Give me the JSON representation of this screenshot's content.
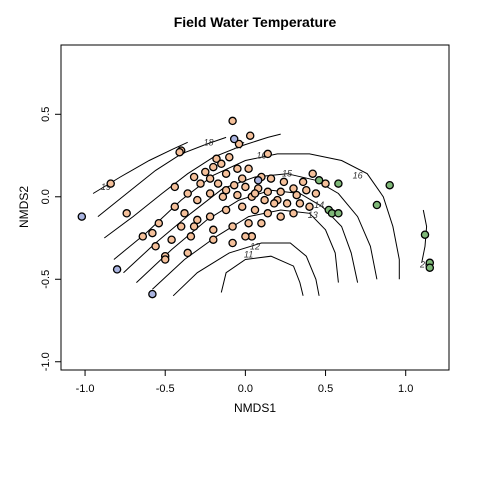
{
  "chart_data": {
    "type": "scatter",
    "title": "Field Water Temperature",
    "xlabel": "NMDS1",
    "ylabel": "NMDS2",
    "xlim": [
      -1.15,
      1.27
    ],
    "ylim": [
      -1.05,
      0.92
    ],
    "xticks": [
      -1.0,
      -0.5,
      0.0,
      0.5,
      1.0
    ],
    "yticks": [
      -1.0,
      -0.5,
      0.0,
      0.5
    ],
    "xtick_labels": [
      "-1.0",
      "-0.5",
      "0.0",
      "0.5",
      "1.0"
    ],
    "ytick_labels": [
      "-1.0",
      "-0.5",
      "0.0",
      "0.5"
    ],
    "grid": false,
    "colors": {
      "orange": "#f5c09a",
      "blue": "#aab4e0",
      "green": "#7fb878"
    },
    "contours": [
      {
        "level": "19",
        "path": [
          [
            -0.95,
            0.02
          ],
          [
            -0.78,
            0.12
          ],
          [
            -0.6,
            0.22
          ],
          [
            -0.45,
            0.29
          ],
          [
            -0.36,
            0.33
          ]
        ]
      },
      {
        "level": "18",
        "path": [
          [
            -0.92,
            -0.12
          ],
          [
            -0.74,
            0.02
          ],
          [
            -0.56,
            0.16
          ],
          [
            -0.4,
            0.26
          ],
          [
            -0.24,
            0.32
          ],
          [
            -0.12,
            0.36
          ]
        ]
      },
      {
        "level": "17",
        "path": [
          [
            -0.88,
            -0.25
          ],
          [
            -0.7,
            -0.12
          ],
          [
            -0.52,
            0.02
          ],
          [
            -0.36,
            0.14
          ],
          [
            -0.2,
            0.24
          ],
          [
            -0.02,
            0.31
          ],
          [
            0.14,
            0.36
          ],
          [
            0.22,
            0.38
          ]
        ]
      },
      {
        "level": "16",
        "path": [
          [
            -0.82,
            -0.38
          ],
          [
            -0.62,
            -0.22
          ],
          [
            -0.4,
            -0.02
          ],
          [
            -0.2,
            0.13
          ],
          [
            0.0,
            0.22
          ],
          [
            0.2,
            0.26
          ],
          [
            0.4,
            0.26
          ],
          [
            0.6,
            0.22
          ],
          [
            0.76,
            0.14
          ],
          [
            0.86,
            0.0
          ],
          [
            0.92,
            -0.18
          ],
          [
            0.96,
            -0.38
          ],
          [
            0.96,
            -0.5
          ]
        ]
      },
      {
        "level": "15",
        "path": [
          [
            -0.76,
            -0.46
          ],
          [
            -0.56,
            -0.28
          ],
          [
            -0.34,
            -0.1
          ],
          [
            -0.14,
            0.05
          ],
          [
            0.06,
            0.12
          ],
          [
            0.26,
            0.14
          ],
          [
            0.44,
            0.1
          ],
          [
            0.58,
            0.02
          ],
          [
            0.7,
            -0.12
          ],
          [
            0.78,
            -0.3
          ],
          [
            0.82,
            -0.5
          ]
        ]
      },
      {
        "level": "14",
        "path": [
          [
            -0.68,
            -0.52
          ],
          [
            -0.46,
            -0.32
          ],
          [
            -0.24,
            -0.14
          ],
          [
            -0.04,
            -0.02
          ],
          [
            0.16,
            0.04
          ],
          [
            0.34,
            0.02
          ],
          [
            0.48,
            -0.06
          ],
          [
            0.6,
            -0.18
          ],
          [
            0.66,
            -0.34
          ],
          [
            0.7,
            -0.52
          ]
        ]
      },
      {
        "level": "13",
        "path": [
          [
            -0.58,
            -0.56
          ],
          [
            -0.38,
            -0.38
          ],
          [
            -0.18,
            -0.24
          ],
          [
            0.02,
            -0.12
          ],
          [
            0.22,
            -0.08
          ],
          [
            0.4,
            -0.1
          ],
          [
            0.5,
            -0.2
          ],
          [
            0.56,
            -0.34
          ],
          [
            0.58,
            -0.52
          ]
        ]
      },
      {
        "level": "12",
        "path": [
          [
            -0.45,
            -0.6
          ],
          [
            -0.3,
            -0.46
          ],
          [
            -0.1,
            -0.34
          ],
          [
            0.1,
            -0.28
          ],
          [
            0.28,
            -0.28
          ],
          [
            0.38,
            -0.36
          ],
          [
            0.44,
            -0.5
          ],
          [
            0.46,
            -0.6
          ]
        ]
      },
      {
        "level": "11",
        "path": [
          [
            -0.15,
            -0.58
          ],
          [
            -0.12,
            -0.46
          ],
          [
            0.0,
            -0.38
          ],
          [
            0.16,
            -0.36
          ],
          [
            0.3,
            -0.42
          ],
          [
            0.34,
            -0.52
          ],
          [
            0.36,
            -0.6
          ]
        ]
      },
      {
        "level": "20",
        "path": [
          [
            1.11,
            -0.08
          ],
          [
            1.13,
            -0.18
          ],
          [
            1.12,
            -0.3
          ],
          [
            1.1,
            -0.4
          ]
        ]
      }
    ],
    "contour_labels": [
      {
        "text": "19",
        "x": -0.87,
        "y": 0.06
      },
      {
        "text": "18",
        "x": -0.23,
        "y": 0.33
      },
      {
        "text": "17",
        "x": -0.04,
        "y": 0.31
      },
      {
        "text": "16",
        "x": 0.1,
        "y": 0.25
      },
      {
        "text": "16",
        "x": 0.7,
        "y": 0.13
      },
      {
        "text": "15",
        "x": 0.26,
        "y": 0.14
      },
      {
        "text": "14",
        "x": 0.46,
        "y": -0.05
      },
      {
        "text": "13",
        "x": 0.42,
        "y": -0.11
      },
      {
        "text": "12",
        "x": 0.06,
        "y": -0.3
      },
      {
        "text": "11",
        "x": 0.02,
        "y": -0.35
      },
      {
        "text": "20",
        "x": 1.12,
        "y": -0.41
      }
    ],
    "points": {
      "blue": [
        [
          -1.02,
          -0.12
        ],
        [
          -0.8,
          -0.44
        ],
        [
          -0.58,
          -0.59
        ],
        [
          -0.07,
          0.35
        ],
        [
          0.08,
          0.1
        ]
      ],
      "green": [
        [
          0.46,
          0.1
        ],
        [
          0.58,
          0.08
        ],
        [
          0.9,
          0.07
        ],
        [
          0.52,
          -0.08
        ],
        [
          0.54,
          -0.1
        ],
        [
          0.58,
          -0.1
        ],
        [
          0.82,
          -0.05
        ],
        [
          1.12,
          -0.23
        ],
        [
          1.15,
          -0.4
        ],
        [
          1.15,
          -0.43
        ]
      ],
      "orange": [
        [
          -0.08,
          0.46
        ],
        [
          0.03,
          0.37
        ],
        [
          -0.04,
          0.32
        ],
        [
          0.14,
          0.26
        ],
        [
          -0.4,
          0.28
        ],
        [
          -0.41,
          0.27
        ],
        [
          -0.18,
          0.23
        ],
        [
          -0.1,
          0.24
        ],
        [
          -0.2,
          0.18
        ],
        [
          -0.15,
          0.2
        ],
        [
          -0.05,
          0.17
        ],
        [
          0.02,
          0.17
        ],
        [
          -0.12,
          0.14
        ],
        [
          -0.25,
          0.15
        ],
        [
          -0.22,
          0.11
        ],
        [
          -0.32,
          0.12
        ],
        [
          -0.28,
          0.08
        ],
        [
          -0.17,
          0.08
        ],
        [
          -0.07,
          0.07
        ],
        [
          0.0,
          0.06
        ],
        [
          0.08,
          0.05
        ],
        [
          0.14,
          0.03
        ],
        [
          0.22,
          0.03
        ],
        [
          0.3,
          0.05
        ],
        [
          0.38,
          0.04
        ],
        [
          0.44,
          0.02
        ],
        [
          -0.44,
          0.06
        ],
        [
          -0.36,
          0.02
        ],
        [
          -0.3,
          -0.02
        ],
        [
          -0.22,
          0.02
        ],
        [
          -0.14,
          0.0
        ],
        [
          -0.05,
          0.01
        ],
        [
          0.04,
          0.0
        ],
        [
          0.12,
          -0.02
        ],
        [
          0.2,
          -0.02
        ],
        [
          0.26,
          -0.04
        ],
        [
          0.34,
          -0.04
        ],
        [
          0.4,
          -0.06
        ],
        [
          -0.44,
          -0.06
        ],
        [
          -0.38,
          -0.1
        ],
        [
          -0.3,
          -0.14
        ],
        [
          -0.22,
          -0.12
        ],
        [
          -0.12,
          -0.08
        ],
        [
          -0.02,
          -0.06
        ],
        [
          0.06,
          -0.08
        ],
        [
          0.14,
          -0.1
        ],
        [
          0.22,
          -0.12
        ],
        [
          0.3,
          -0.1
        ],
        [
          -0.54,
          -0.16
        ],
        [
          -0.4,
          -0.18
        ],
        [
          -0.32,
          -0.18
        ],
        [
          -0.2,
          -0.2
        ],
        [
          -0.08,
          -0.18
        ],
        [
          0.02,
          -0.16
        ],
        [
          0.1,
          -0.16
        ],
        [
          -0.58,
          -0.22
        ],
        [
          -0.46,
          -0.26
        ],
        [
          -0.34,
          -0.24
        ],
        [
          -0.2,
          -0.26
        ],
        [
          -0.08,
          -0.28
        ],
        [
          0.04,
          -0.24
        ],
        [
          -0.56,
          -0.3
        ],
        [
          -0.5,
          -0.36
        ],
        [
          -0.36,
          -0.34
        ],
        [
          0.04,
          -0.24
        ],
        [
          -0.84,
          0.08
        ],
        [
          -0.74,
          -0.1
        ],
        [
          -0.64,
          -0.24
        ],
        [
          -0.5,
          -0.38
        ],
        [
          0.0,
          -0.24
        ],
        [
          0.16,
          0.11
        ],
        [
          0.24,
          0.09
        ],
        [
          0.1,
          0.12
        ],
        [
          -0.02,
          0.11
        ],
        [
          -0.12,
          0.04
        ],
        [
          0.06,
          0.02
        ],
        [
          0.18,
          -0.04
        ],
        [
          0.32,
          0.01
        ],
        [
          0.42,
          0.14
        ],
        [
          0.5,
          0.08
        ],
        [
          0.36,
          0.09
        ]
      ]
    }
  }
}
